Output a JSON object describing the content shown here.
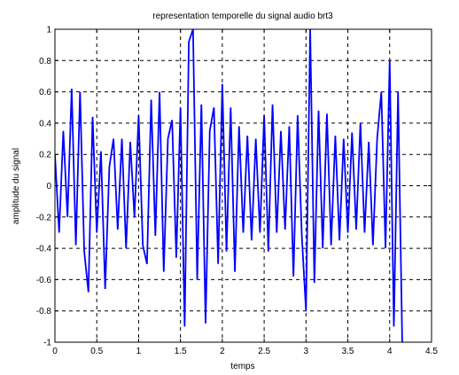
{
  "chart_data": {
    "type": "line",
    "title": "representation temporelle du signal audio brt3",
    "xlabel": "temps",
    "ylabel": "amplitude du signal",
    "xlim": [
      0,
      4.5
    ],
    "ylim": [
      -1,
      1
    ],
    "grid": true,
    "x_ticks": [
      0,
      0.5,
      1,
      1.5,
      2,
      2.5,
      3,
      3.5,
      4,
      4.5
    ],
    "y_ticks": [
      -1,
      -0.8,
      -0.6,
      -0.4,
      -0.2,
      0,
      0.2,
      0.4,
      0.6,
      0.8,
      1
    ],
    "x_tick_labels": [
      "0",
      "0.5",
      "1",
      "1.5",
      "2",
      "2.5",
      "3",
      "3.5",
      "4",
      "4.5"
    ],
    "y_tick_labels": [
      "-1",
      "-0.8",
      "-0.6",
      "-0.4",
      "-0.2",
      "0",
      "0.2",
      "0.4",
      "0.6",
      "0.8",
      "1"
    ],
    "line_color": "#0000ff",
    "series": [
      {
        "x": [
          0,
          0.05,
          0.1,
          0.15,
          0.2,
          0.25,
          0.3,
          0.35,
          0.4,
          0.45,
          0.5,
          0.55,
          0.6,
          0.65,
          0.7,
          0.75,
          0.8,
          0.85,
          0.9,
          0.95,
          1.0,
          1.05,
          1.1,
          1.15,
          1.2,
          1.25,
          1.3,
          1.35,
          1.4,
          1.45,
          1.5,
          1.55,
          1.6,
          1.65,
          1.7,
          1.75,
          1.8,
          1.85,
          1.9,
          1.95,
          2.0,
          2.05,
          2.1,
          2.15,
          2.2,
          2.25,
          2.3,
          2.35,
          2.4,
          2.45,
          2.5,
          2.55,
          2.6,
          2.65,
          2.7,
          2.75,
          2.8,
          2.85,
          2.9,
          2.95,
          3.0,
          3.05,
          3.1,
          3.15,
          3.2,
          3.25,
          3.3,
          3.35,
          3.4,
          3.45,
          3.5,
          3.55,
          3.6,
          3.65,
          3.7,
          3.75,
          3.8,
          3.85,
          3.9,
          3.95,
          4.0,
          4.05,
          4.1,
          4.15
        ],
        "y": [
          0.2,
          -0.3,
          0.35,
          -0.2,
          0.62,
          -0.38,
          0.6,
          -0.42,
          -0.68,
          0.44,
          -0.3,
          0.22,
          -0.66,
          0.12,
          0.3,
          -0.28,
          0.3,
          -0.4,
          0.28,
          -0.2,
          0.45,
          -0.38,
          -0.5,
          0.55,
          -0.32,
          0.6,
          -0.55,
          0.3,
          0.42,
          -0.46,
          0.5,
          -0.9,
          0.92,
          1.0,
          -0.6,
          0.52,
          -0.88,
          0.35,
          0.5,
          -0.5,
          0.65,
          -0.42,
          0.5,
          -0.55,
          0.38,
          -0.3,
          0.32,
          -0.35,
          0.3,
          -0.3,
          0.45,
          -0.42,
          0.52,
          -0.3,
          0.35,
          -0.28,
          0.38,
          -0.58,
          0.45,
          -0.32,
          -0.8,
          1.0,
          -0.62,
          0.48,
          -0.4,
          0.46,
          -0.38,
          0.32,
          -0.35,
          0.3,
          -0.3,
          0.34,
          -0.28,
          0.4,
          -0.3,
          0.28,
          -0.38,
          0.3,
          0.6,
          -0.4,
          0.8,
          -0.9,
          0.6,
          -1.0
        ]
      }
    ]
  }
}
